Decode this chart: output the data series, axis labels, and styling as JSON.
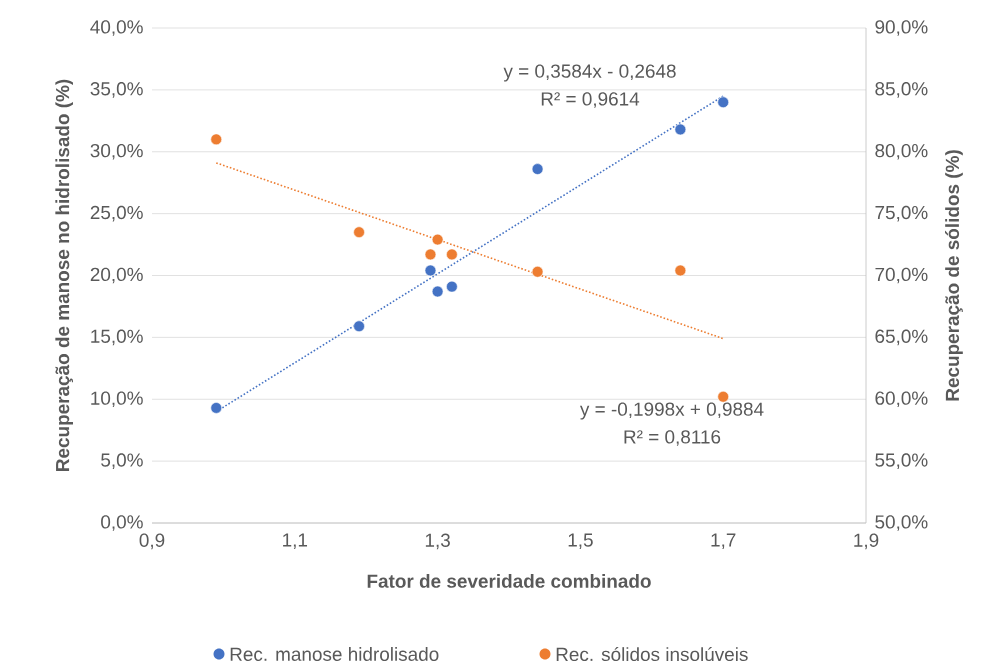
{
  "chart_data": {
    "type": "scatter",
    "xlabel": "Fator de severidade combinado",
    "ylabel": "Recuperação de manose no hidrolisado  (%)",
    "y2label": "Recuperação de sólidos  (%)",
    "xlim": [
      0.9,
      1.9
    ],
    "xticks": [
      {
        "value": 0.9,
        "label": "0,9"
      },
      {
        "value": 1.1,
        "label": "1,1"
      },
      {
        "value": 1.3,
        "label": "1,3"
      },
      {
        "value": 1.5,
        "label": "1,5"
      },
      {
        "value": 1.7,
        "label": "1,7"
      },
      {
        "value": 1.9,
        "label": "1,9"
      }
    ],
    "ylim": [
      0,
      40
    ],
    "yticks": [
      {
        "value": 0,
        "label": "0,0%"
      },
      {
        "value": 5,
        "label": "5,0%"
      },
      {
        "value": 10,
        "label": "10,0%"
      },
      {
        "value": 15,
        "label": "15,0%"
      },
      {
        "value": 20,
        "label": "20,0%"
      },
      {
        "value": 25,
        "label": "25,0%"
      },
      {
        "value": 30,
        "label": "30,0%"
      },
      {
        "value": 35,
        "label": "35,0%"
      },
      {
        "value": 40,
        "label": "40,0%"
      }
    ],
    "y2lim": [
      50,
      90
    ],
    "y2ticks": [
      {
        "value": 50,
        "label": "50,0%"
      },
      {
        "value": 55,
        "label": "55,0%"
      },
      {
        "value": 60,
        "label": "60,0%"
      },
      {
        "value": 65,
        "label": "65,0%"
      },
      {
        "value": 70,
        "label": "70,0%"
      },
      {
        "value": 75,
        "label": "75,0%"
      },
      {
        "value": 80,
        "label": "80,0%"
      },
      {
        "value": 85,
        "label": "85,0%"
      },
      {
        "value": 90,
        "label": "90,0%"
      }
    ],
    "grid": "y",
    "legend": "bottom",
    "series": [
      {
        "name": "Rec. manose hidrolisado",
        "marker": "circle",
        "color": "#4472c4",
        "x": [
          0.99,
          1.19,
          1.29,
          1.3,
          1.32,
          1.44,
          1.64,
          1.7
        ],
        "values": [
          9.3,
          15.9,
          20.4,
          18.7,
          19.1,
          28.6,
          31.8,
          34.0
        ]
      },
      {
        "name": "Rec. sólidos insolúveis",
        "marker": "circle",
        "axis": "y2",
        "color": "#ed7d31",
        "x": [
          0.99,
          1.19,
          1.29,
          1.3,
          1.32,
          1.44,
          1.64,
          1.7
        ],
        "values": [
          81.0,
          73.5,
          71.7,
          72.9,
          71.7,
          70.3,
          70.4,
          60.2
        ]
      },
      {
        "type": "line",
        "marker": "none",
        "line_style": "dotted",
        "color": "#4472c4",
        "x": [
          0.99,
          1.7
        ],
        "values": [
          9.0,
          34.5
        ]
      },
      {
        "type": "line",
        "marker": "none",
        "line_style": "dotted",
        "axis": "y2",
        "color": "#ed7d31",
        "x": [
          0.99,
          1.7
        ],
        "values": [
          79.1,
          64.9
        ]
      }
    ],
    "annotations": [
      "y = 0,3584x - 0,2648",
      "R² = 0,9614",
      "y = -0,1998x + 0,9884",
      "R² = 0,8116"
    ]
  }
}
